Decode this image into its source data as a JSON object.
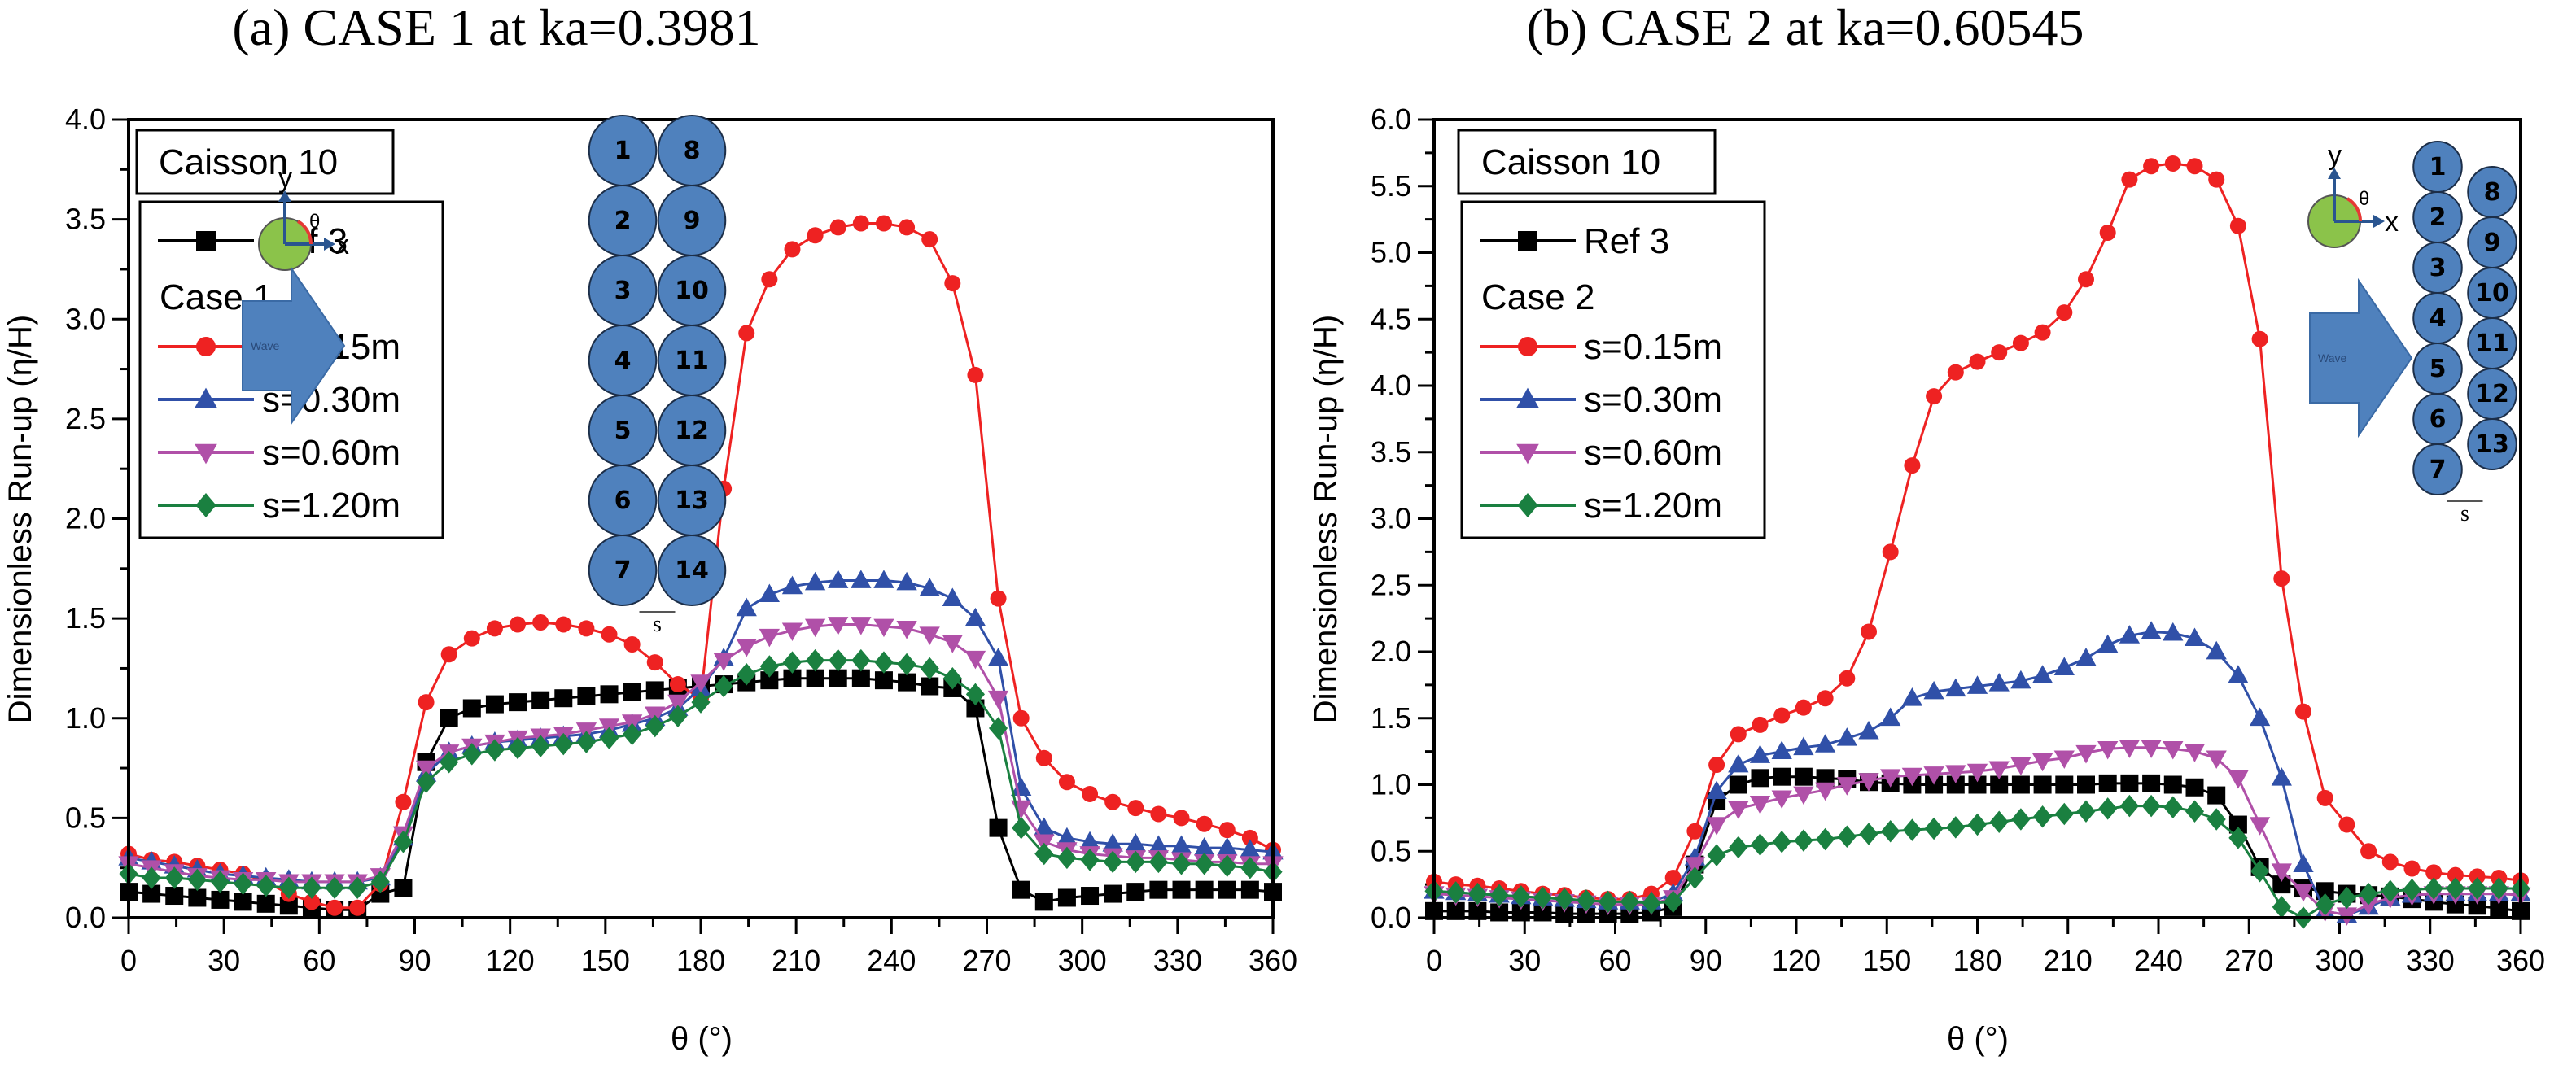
{
  "chart_data": [
    {
      "id": "a",
      "type": "line",
      "title": "(a) CASE 1 at ka=0.3981",
      "xlabel": "θ (°)",
      "ylabel": "Dimensionless Run-up (η/H)",
      "xlim": [
        0,
        360
      ],
      "ylim": [
        0,
        4.0
      ],
      "xticks": [
        0,
        30,
        60,
        90,
        120,
        150,
        180,
        210,
        240,
        270,
        300,
        330,
        360
      ],
      "yticks": [
        "0.0",
        "0.5",
        "1.0",
        "1.5",
        "2.0",
        "2.5",
        "3.0",
        "3.5",
        "4.0"
      ],
      "annotation_box": "Caisson 10",
      "legend_group_label": "Case 1",
      "legend_position": "top-left",
      "x": [
        0,
        7.2,
        14.4,
        21.6,
        28.8,
        36,
        43.2,
        50.4,
        57.6,
        64.8,
        72,
        79.2,
        86.4,
        93.6,
        100.8,
        108,
        115.2,
        122.4,
        129.6,
        136.8,
        144,
        151.2,
        158.4,
        165.6,
        172.8,
        180,
        187.2,
        194.4,
        201.6,
        208.8,
        216,
        223.2,
        230.4,
        237.6,
        244.8,
        252,
        259.2,
        266.4,
        273.6,
        280.8,
        288,
        295.2,
        302.4,
        309.6,
        316.8,
        324,
        331.2,
        338.4,
        345.6,
        352.8,
        360
      ],
      "series": [
        {
          "name": "Ref 3",
          "color": "#000000",
          "marker": "square",
          "values": [
            0.13,
            0.12,
            0.11,
            0.1,
            0.09,
            0.08,
            0.07,
            0.06,
            0.05,
            0.04,
            0.04,
            0.12,
            0.15,
            0.78,
            1.0,
            1.05,
            1.07,
            1.08,
            1.09,
            1.1,
            1.11,
            1.12,
            1.13,
            1.14,
            1.15,
            1.16,
            1.17,
            1.18,
            1.19,
            1.2,
            1.2,
            1.2,
            1.2,
            1.19,
            1.18,
            1.16,
            1.15,
            1.05,
            0.45,
            0.14,
            0.08,
            0.1,
            0.11,
            0.12,
            0.13,
            0.14,
            0.14,
            0.14,
            0.14,
            0.14,
            0.13
          ]
        },
        {
          "name": "s=0.15m",
          "color": "#ee2222",
          "marker": "circle",
          "values": [
            0.32,
            0.29,
            0.28,
            0.26,
            0.24,
            0.22,
            0.18,
            0.12,
            0.08,
            0.05,
            0.05,
            0.17,
            0.58,
            1.08,
            1.32,
            1.4,
            1.45,
            1.47,
            1.48,
            1.47,
            1.45,
            1.42,
            1.37,
            1.28,
            1.17,
            1.1,
            2.15,
            2.93,
            3.2,
            3.35,
            3.42,
            3.46,
            3.48,
            3.48,
            3.46,
            3.4,
            3.18,
            2.72,
            1.6,
            1.0,
            0.8,
            0.68,
            0.62,
            0.58,
            0.55,
            0.52,
            0.5,
            0.47,
            0.44,
            0.4,
            0.34
          ]
        },
        {
          "name": "s=0.30m",
          "color": "#3050a8",
          "marker": "triangle-up",
          "values": [
            0.3,
            0.28,
            0.26,
            0.24,
            0.22,
            0.21,
            0.2,
            0.19,
            0.18,
            0.18,
            0.18,
            0.2,
            0.4,
            0.72,
            0.83,
            0.86,
            0.88,
            0.89,
            0.9,
            0.91,
            0.92,
            0.94,
            0.97,
            1.0,
            1.05,
            1.15,
            1.3,
            1.55,
            1.62,
            1.66,
            1.68,
            1.69,
            1.69,
            1.69,
            1.68,
            1.65,
            1.6,
            1.5,
            1.3,
            0.65,
            0.45,
            0.4,
            0.38,
            0.37,
            0.37,
            0.36,
            0.36,
            0.35,
            0.35,
            0.34,
            0.33
          ]
        },
        {
          "name": "s=0.60m",
          "color": "#b050a8",
          "marker": "triangle-down",
          "values": [
            0.27,
            0.25,
            0.23,
            0.21,
            0.2,
            0.19,
            0.19,
            0.18,
            0.18,
            0.18,
            0.18,
            0.21,
            0.42,
            0.75,
            0.83,
            0.86,
            0.88,
            0.9,
            0.91,
            0.92,
            0.94,
            0.96,
            0.98,
            1.02,
            1.08,
            1.18,
            1.29,
            1.36,
            1.41,
            1.44,
            1.46,
            1.47,
            1.47,
            1.46,
            1.45,
            1.42,
            1.38,
            1.3,
            1.1,
            0.55,
            0.38,
            0.34,
            0.32,
            0.31,
            0.3,
            0.3,
            0.29,
            0.28,
            0.28,
            0.27,
            0.27
          ]
        },
        {
          "name": "s=1.20m",
          "color": "#1a8040",
          "marker": "diamond",
          "values": [
            0.22,
            0.2,
            0.2,
            0.19,
            0.18,
            0.17,
            0.16,
            0.15,
            0.15,
            0.15,
            0.15,
            0.18,
            0.38,
            0.68,
            0.78,
            0.82,
            0.84,
            0.85,
            0.86,
            0.87,
            0.88,
            0.9,
            0.92,
            0.96,
            1.01,
            1.08,
            1.16,
            1.22,
            1.26,
            1.28,
            1.29,
            1.29,
            1.29,
            1.28,
            1.27,
            1.25,
            1.2,
            1.12,
            0.95,
            0.45,
            0.32,
            0.3,
            0.29,
            0.28,
            0.28,
            0.28,
            0.27,
            0.27,
            0.26,
            0.25,
            0.23
          ]
        }
      ],
      "inset": {
        "axis_labels": [
          "y",
          "x",
          "θ"
        ],
        "arrow_label": "Wave",
        "gap_label": "s",
        "caisson_numbers": [
          "1",
          "2",
          "3",
          "4",
          "5",
          "6",
          "7",
          "8",
          "9",
          "10",
          "11",
          "12",
          "13",
          "14"
        ],
        "highlight_color": "#8bc34a",
        "caisson_color": "#4f81bd"
      }
    },
    {
      "id": "b",
      "type": "line",
      "title": "(b) CASE 2 at ka=0.60545",
      "xlabel": "θ (°)",
      "ylabel": "Dimensionless Run-up (η/H)",
      "xlim": [
        0,
        360
      ],
      "ylim": [
        0,
        6.0
      ],
      "xticks": [
        0,
        30,
        60,
        90,
        120,
        150,
        180,
        210,
        240,
        270,
        300,
        330,
        360
      ],
      "yticks": [
        "0.0",
        "0.5",
        "1.0",
        "1.5",
        "2.0",
        "2.5",
        "3.0",
        "3.5",
        "4.0",
        "4.5",
        "5.0",
        "5.5",
        "6.0"
      ],
      "annotation_box": "Caisson 10",
      "legend_group_label": "Case 2",
      "legend_position": "top-left",
      "x": [
        0,
        7.2,
        14.4,
        21.6,
        28.8,
        36,
        43.2,
        50.4,
        57.6,
        64.8,
        72,
        79.2,
        86.4,
        93.6,
        100.8,
        108,
        115.2,
        122.4,
        129.6,
        136.8,
        144,
        151.2,
        158.4,
        165.6,
        172.8,
        180,
        187.2,
        194.4,
        201.6,
        208.8,
        216,
        223.2,
        230.4,
        237.6,
        244.8,
        252,
        259.2,
        266.4,
        273.6,
        280.8,
        288,
        295.2,
        302.4,
        309.6,
        316.8,
        324,
        331.2,
        338.4,
        345.6,
        352.8,
        360
      ],
      "series": [
        {
          "name": "Ref 3",
          "color": "#000000",
          "marker": "square",
          "values": [
            0.05,
            0.05,
            0.05,
            0.04,
            0.04,
            0.04,
            0.03,
            0.03,
            0.03,
            0.03,
            0.04,
            0.08,
            0.4,
            0.88,
            1.0,
            1.05,
            1.06,
            1.06,
            1.05,
            1.04,
            1.02,
            1.01,
            1.0,
            1.0,
            1.0,
            1.0,
            1.0,
            1.0,
            1.0,
            1.0,
            1.0,
            1.01,
            1.01,
            1.01,
            1.0,
            0.98,
            0.92,
            0.7,
            0.38,
            0.25,
            0.22,
            0.2,
            0.18,
            0.17,
            0.16,
            0.14,
            0.12,
            0.1,
            0.09,
            0.07,
            0.05
          ]
        },
        {
          "name": "s=0.15m",
          "color": "#ee2222",
          "marker": "circle",
          "values": [
            0.27,
            0.25,
            0.24,
            0.22,
            0.2,
            0.18,
            0.17,
            0.15,
            0.14,
            0.14,
            0.18,
            0.3,
            0.65,
            1.15,
            1.38,
            1.45,
            1.52,
            1.58,
            1.65,
            1.8,
            2.15,
            2.75,
            3.4,
            3.92,
            4.1,
            4.18,
            4.25,
            4.32,
            4.4,
            4.55,
            4.8,
            5.15,
            5.55,
            5.65,
            5.67,
            5.65,
            5.55,
            5.2,
            4.35,
            2.55,
            1.55,
            0.9,
            0.7,
            0.5,
            0.42,
            0.37,
            0.34,
            0.32,
            0.31,
            0.3,
            0.28
          ]
        },
        {
          "name": "s=0.30m",
          "color": "#3050a8",
          "marker": "triangle-up",
          "values": [
            0.2,
            0.19,
            0.18,
            0.17,
            0.16,
            0.15,
            0.14,
            0.13,
            0.12,
            0.12,
            0.12,
            0.18,
            0.45,
            0.95,
            1.15,
            1.22,
            1.25,
            1.28,
            1.3,
            1.35,
            1.4,
            1.5,
            1.65,
            1.7,
            1.72,
            1.74,
            1.76,
            1.78,
            1.82,
            1.88,
            1.95,
            2.05,
            2.12,
            2.15,
            2.14,
            2.1,
            2.0,
            1.82,
            1.5,
            1.05,
            0.4,
            0.05,
            0.02,
            0.08,
            0.15,
            0.17,
            0.18,
            0.18,
            0.18,
            0.18,
            0.18
          ]
        },
        {
          "name": "s=0.60m",
          "color": "#b050a8",
          "marker": "triangle-down",
          "values": [
            0.18,
            0.17,
            0.16,
            0.15,
            0.14,
            0.13,
            0.12,
            0.11,
            0.1,
            0.1,
            0.1,
            0.15,
            0.4,
            0.7,
            0.82,
            0.86,
            0.9,
            0.93,
            0.96,
            1.0,
            1.03,
            1.06,
            1.07,
            1.08,
            1.09,
            1.1,
            1.12,
            1.15,
            1.18,
            1.2,
            1.24,
            1.27,
            1.28,
            1.28,
            1.27,
            1.25,
            1.2,
            1.05,
            0.7,
            0.35,
            0.2,
            0.05,
            0.02,
            0.1,
            0.15,
            0.17,
            0.18,
            0.18,
            0.18,
            0.18,
            0.17
          ]
        },
        {
          "name": "s=1.20m",
          "color": "#1a8040",
          "marker": "diamond",
          "values": [
            0.2,
            0.19,
            0.18,
            0.17,
            0.16,
            0.15,
            0.14,
            0.13,
            0.12,
            0.12,
            0.11,
            0.12,
            0.3,
            0.47,
            0.53,
            0.55,
            0.57,
            0.58,
            0.59,
            0.61,
            0.63,
            0.65,
            0.66,
            0.67,
            0.68,
            0.7,
            0.72,
            0.74,
            0.76,
            0.78,
            0.8,
            0.82,
            0.84,
            0.84,
            0.83,
            0.8,
            0.74,
            0.6,
            0.35,
            0.08,
            0.0,
            0.1,
            0.15,
            0.18,
            0.2,
            0.21,
            0.22,
            0.22,
            0.22,
            0.22,
            0.22
          ]
        }
      ],
      "inset": {
        "axis_labels": [
          "y",
          "x",
          "θ"
        ],
        "arrow_label": "Wave",
        "gap_label": "s",
        "caisson_numbers": [
          "1",
          "2",
          "3",
          "4",
          "5",
          "6",
          "7",
          "8",
          "9",
          "10",
          "11",
          "12",
          "13"
        ],
        "highlight_color": "#8bc34a",
        "caisson_color": "#4f81bd"
      }
    }
  ]
}
